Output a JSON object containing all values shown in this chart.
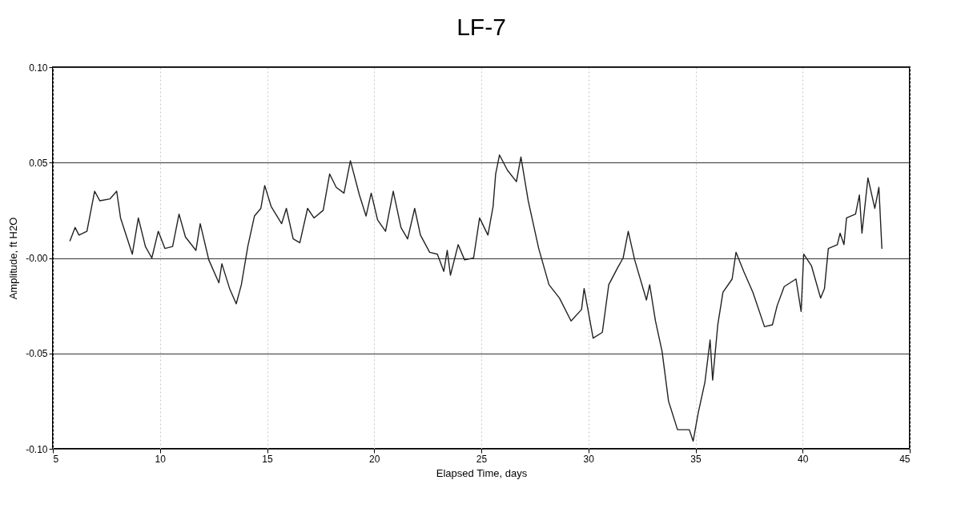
{
  "chart_data": {
    "type": "line",
    "title": "LF-7",
    "xlabel": "Elapsed Time, days",
    "ylabel": "Amplitude, ft H2O",
    "xlim": [
      5,
      45
    ],
    "xticks": [
      5,
      10,
      15,
      20,
      25,
      30,
      35,
      40,
      45
    ],
    "ylim": [
      -0.1,
      0.1
    ],
    "yticks": [
      {
        "value": -0.1,
        "label": "-0.10"
      },
      {
        "value": -0.05,
        "label": "-0.05"
      },
      {
        "value": 0,
        "label": "-0.00"
      },
      {
        "value": 0.05,
        "label": "0.05"
      },
      {
        "value": 0.1,
        "label": "0.10"
      }
    ],
    "grid": true,
    "marker": "none",
    "line_style": "solid",
    "series": [
      {
        "color": "#222222",
        "x": [
          5.8,
          6.04,
          6.22,
          6.59,
          6.95,
          7.19,
          7.67,
          7.98,
          8.16,
          8.71,
          8.99,
          9.32,
          9.62,
          9.92,
          10.23,
          10.59,
          10.89,
          11.19,
          11.68,
          11.88,
          12.28,
          12.75,
          12.89,
          13.25,
          13.56,
          13.8,
          14.1,
          14.41,
          14.71,
          14.89,
          15.19,
          15.68,
          15.9,
          16.22,
          16.53,
          16.89,
          17.19,
          17.62,
          17.92,
          18.23,
          18.59,
          18.89,
          19.31,
          19.62,
          19.86,
          20.16,
          20.53,
          20.89,
          21.25,
          21.56,
          21.89,
          22.16,
          22.59,
          22.95,
          23.25,
          23.41,
          23.56,
          23.92,
          24.22,
          24.64,
          24.92,
          25.31,
          25.55,
          25.67,
          25.85,
          26.22,
          26.64,
          26.85,
          27.19,
          27.68,
          28.16,
          28.65,
          29.19,
          29.68,
          29.8,
          30.22,
          30.65,
          30.95,
          31.37,
          31.62,
          31.86,
          32.16,
          32.71,
          32.86,
          33.13,
          33.44,
          33.74,
          34.16,
          34.71,
          34.89,
          35.13,
          35.44,
          35.68,
          35.8,
          36.04,
          36.28,
          36.71,
          36.89,
          37.25,
          37.68,
          38.22,
          38.59,
          38.81,
          39.14,
          39.69,
          39.93,
          40.05,
          40.41,
          40.84,
          41.02,
          41.2,
          41.62,
          41.75,
          41.93,
          42.05,
          42.47,
          42.65,
          42.77,
          43.05,
          43.37,
          43.56,
          43.7
        ],
        "values": [
          0.009,
          0.016,
          0.012,
          0.014,
          0.035,
          0.03,
          0.031,
          0.035,
          0.021,
          0.002,
          0.021,
          0.006,
          0.0,
          0.014,
          0.005,
          0.006,
          0.023,
          0.011,
          0.004,
          0.018,
          -0.001,
          -0.013,
          -0.003,
          -0.016,
          -0.024,
          -0.014,
          0.006,
          0.022,
          0.026,
          0.038,
          0.027,
          0.018,
          0.026,
          0.01,
          0.008,
          0.026,
          0.021,
          0.025,
          0.044,
          0.037,
          0.034,
          0.051,
          0.033,
          0.022,
          0.034,
          0.02,
          0.014,
          0.035,
          0.016,
          0.01,
          0.026,
          0.012,
          0.003,
          0.002,
          -0.007,
          0.004,
          -0.009,
          0.007,
          -0.001,
          0.0,
          0.021,
          0.012,
          0.027,
          0.044,
          0.054,
          0.046,
          0.04,
          0.053,
          0.03,
          0.005,
          -0.014,
          -0.021,
          -0.033,
          -0.027,
          -0.016,
          -0.042,
          -0.039,
          -0.014,
          -0.005,
          0.0,
          0.014,
          -0.001,
          -0.022,
          -0.014,
          -0.033,
          -0.049,
          -0.075,
          -0.09,
          -0.09,
          -0.096,
          -0.081,
          -0.065,
          -0.043,
          -0.064,
          -0.035,
          -0.018,
          -0.011,
          0.003,
          -0.007,
          -0.018,
          -0.036,
          -0.035,
          -0.025,
          -0.015,
          -0.011,
          -0.028,
          0.002,
          -0.004,
          -0.021,
          -0.016,
          0.005,
          0.007,
          0.013,
          0.007,
          0.021,
          0.023,
          0.033,
          0.013,
          0.042,
          0.026,
          0.037,
          0.005
        ]
      }
    ]
  }
}
